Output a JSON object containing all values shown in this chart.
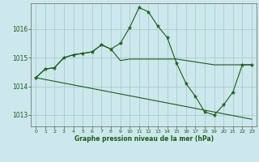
{
  "title": "Graphe pression niveau de la mer (hPa)",
  "background_color": "#cce8ec",
  "grid_color": "#aacccc",
  "line_color": "#1a5c1a",
  "xlim": [
    -0.5,
    23.5
  ],
  "ylim": [
    1012.6,
    1016.9
  ],
  "yticks": [
    1013,
    1014,
    1015,
    1016
  ],
  "xticks": [
    0,
    1,
    2,
    3,
    4,
    5,
    6,
    7,
    8,
    9,
    10,
    11,
    12,
    13,
    14,
    15,
    16,
    17,
    18,
    19,
    20,
    21,
    22,
    23
  ],
  "series1": {
    "x": [
      0,
      1,
      2,
      3,
      4,
      5,
      6,
      7,
      8,
      9,
      10,
      11,
      12,
      13,
      14,
      15,
      16,
      17,
      18,
      19,
      20,
      21,
      22,
      23
    ],
    "y": [
      1014.3,
      1014.6,
      1014.65,
      1015.0,
      1015.1,
      1015.15,
      1015.2,
      1015.45,
      1015.3,
      1015.5,
      1016.05,
      1016.75,
      1016.6,
      1016.1,
      1015.7,
      1014.8,
      1014.1,
      1013.65,
      1013.1,
      1013.0,
      1013.35,
      1013.8,
      1014.75,
      1014.75
    ]
  },
  "series2": {
    "x": [
      0,
      1,
      2,
      3,
      4,
      5,
      6,
      7,
      8,
      9,
      10,
      11,
      12,
      13,
      14,
      15,
      16,
      17,
      18,
      19,
      20,
      21,
      22,
      23
    ],
    "y": [
      1014.3,
      1014.6,
      1014.65,
      1015.0,
      1015.1,
      1015.15,
      1015.2,
      1015.45,
      1015.3,
      1014.9,
      1014.95,
      1014.95,
      1014.95,
      1014.95,
      1014.95,
      1014.95,
      1014.9,
      1014.85,
      1014.8,
      1014.75,
      1014.75,
      1014.75,
      1014.75,
      1014.75
    ]
  },
  "series3": {
    "x": [
      0,
      23
    ],
    "y": [
      1014.3,
      1012.85
    ]
  }
}
